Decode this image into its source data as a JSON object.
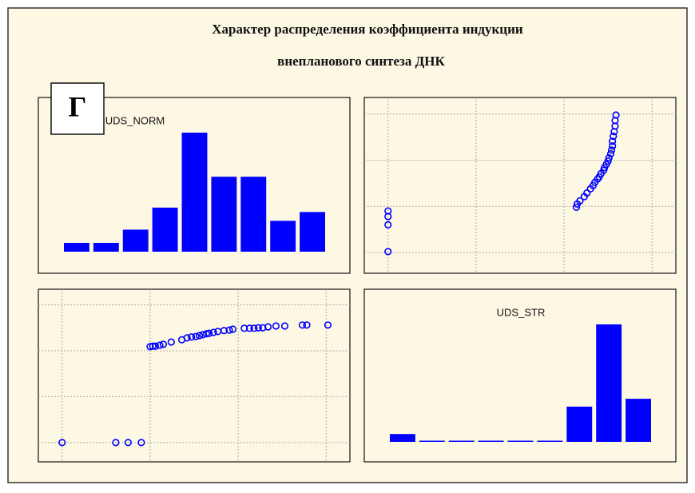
{
  "figure": {
    "title": [
      "Характер распределения коэффициента индукции",
      "внепланового синтеза ДНК"
    ],
    "label": "Г"
  },
  "chart_data": [
    {
      "type": "bar",
      "title": "UDS_NORM",
      "categories": [
        null,
        null,
        null,
        null,
        null,
        null,
        null,
        null,
        null
      ],
      "values": [
        2,
        2,
        5,
        10,
        27,
        17,
        17,
        7,
        9
      ],
      "color": "#0000ff"
    },
    {
      "type": "scatter",
      "x": [
        0,
        0,
        0,
        0,
        2.14,
        2.15,
        2.18,
        2.23,
        2.26,
        2.3,
        2.33,
        2.35,
        2.38,
        2.4,
        2.42,
        2.45,
        2.46,
        2.48,
        2.5,
        2.51,
        2.53,
        2.54,
        2.55,
        2.55,
        2.56,
        2.57,
        2.58,
        2.58,
        2.59
      ],
      "values": [
        0.02,
        0.6,
        0.78,
        0.9,
        0.98,
        1.05,
        1.12,
        1.21,
        1.29,
        1.38,
        1.45,
        1.52,
        1.59,
        1.64,
        1.71,
        1.78,
        1.84,
        1.91,
        1.98,
        2.05,
        2.14,
        2.22,
        2.31,
        2.41,
        2.52,
        2.62,
        2.74,
        2.86,
        2.98
      ],
      "xlim": [
        -0.27,
        3.27
      ],
      "ylim": [
        -0.45,
        3.36
      ],
      "xticks": [
        0,
        1,
        2,
        3
      ],
      "yticks": [
        0,
        1,
        2,
        3
      ],
      "grid": true,
      "color": "#0000ff"
    },
    {
      "type": "scatter",
      "x": [
        0,
        0.61,
        0.75,
        0.9,
        1.0,
        1.03,
        1.06,
        1.11,
        1.15,
        1.24,
        1.36,
        1.42,
        1.47,
        1.52,
        1.56,
        1.6,
        1.64,
        1.67,
        1.72,
        1.77,
        1.84,
        1.9,
        1.94,
        2.07,
        2.13,
        2.18,
        2.23,
        2.28,
        2.34,
        2.43,
        2.53,
        2.73,
        2.78,
        3.02
      ],
      "values": [
        0,
        0,
        0,
        0,
        2.09,
        2.1,
        2.1,
        2.12,
        2.14,
        2.19,
        2.24,
        2.28,
        2.3,
        2.31,
        2.33,
        2.35,
        2.37,
        2.38,
        2.4,
        2.42,
        2.44,
        2.45,
        2.47,
        2.49,
        2.49,
        2.49,
        2.5,
        2.5,
        2.52,
        2.54,
        2.54,
        2.56,
        2.56,
        2.56
      ],
      "xlim": [
        -0.27,
        3.27
      ],
      "ylim": [
        -0.42,
        3.34
      ],
      "xticks": [
        0,
        1,
        2,
        3
      ],
      "yticks": [
        0,
        1,
        2,
        3
      ],
      "grid": true,
      "color": "#0000ff"
    },
    {
      "type": "bar",
      "title": "UDS_STR",
      "categories": [
        null,
        null,
        null,
        null,
        null,
        null,
        null,
        null,
        null
      ],
      "values": [
        2,
        0,
        0,
        0,
        0,
        0,
        9,
        30,
        11
      ],
      "color": "#0000ff"
    }
  ]
}
